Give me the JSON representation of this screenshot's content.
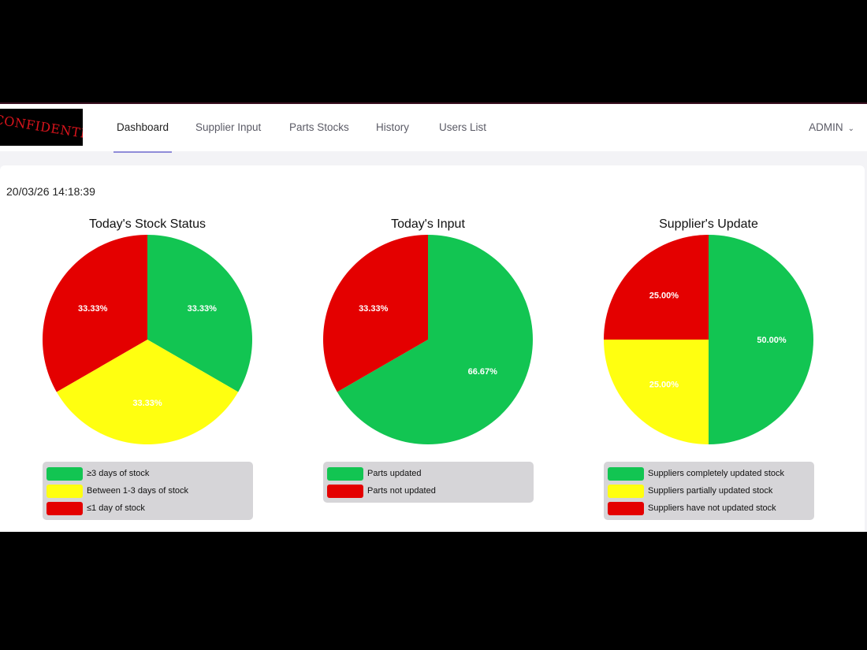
{
  "logo": {
    "text": "CONFIDENTIAL"
  },
  "nav": {
    "tabs": [
      {
        "label": "Dashboard",
        "active": true
      },
      {
        "label": "Supplier Input",
        "active": false
      },
      {
        "label": "Parts Stocks",
        "active": false
      },
      {
        "label": "History",
        "active": false
      },
      {
        "label": "Users List",
        "active": false
      }
    ],
    "user": "ADMIN"
  },
  "timestamp": "20/03/26 14:18:39",
  "colors": {
    "green": "#12c552",
    "yellow": "#ffff10",
    "red": "#e40000"
  },
  "chart_data": [
    {
      "type": "pie",
      "title": "Today's Stock Status",
      "slices": [
        {
          "label": "≥3 days of stock",
          "value": 33.33,
          "display": "33.33%",
          "color": "#12c552"
        },
        {
          "label": "Between 1-3 days of stock",
          "value": 33.33,
          "display": "33.33%",
          "color": "#ffff10"
        },
        {
          "label": "≤1 day of stock",
          "value": 33.33,
          "display": "33.33%",
          "color": "#e40000"
        }
      ],
      "legend": "bottom"
    },
    {
      "type": "pie",
      "title": "Today's Input",
      "slices": [
        {
          "label": "Parts updated",
          "value": 66.67,
          "display": "66.67%",
          "color": "#12c552"
        },
        {
          "label": "Parts not updated",
          "value": 33.33,
          "display": "33.33%",
          "color": "#e40000"
        }
      ],
      "legend": "bottom"
    },
    {
      "type": "pie",
      "title": "Supplier's Update",
      "slices": [
        {
          "label": "Suppliers completely updated stock",
          "value": 50.0,
          "display": "50.00%",
          "color": "#12c552"
        },
        {
          "label": "Suppliers partially updated stock",
          "value": 25.0,
          "display": "25.00%",
          "color": "#ffff10"
        },
        {
          "label": "Suppliers have not updated stock",
          "value": 25.0,
          "display": "25.00%",
          "color": "#e40000"
        }
      ],
      "legend": "bottom"
    }
  ]
}
